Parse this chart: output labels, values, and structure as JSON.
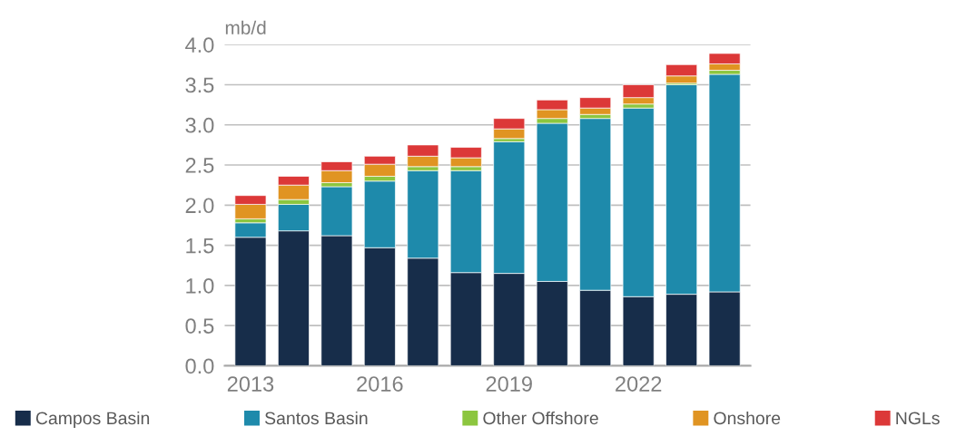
{
  "chart_data": {
    "type": "bar",
    "stacked": true,
    "ylabel": "mb/d",
    "categories": [
      "2013",
      null,
      null,
      "2016",
      null,
      null,
      "2019",
      null,
      null,
      "2022",
      null,
      null
    ],
    "series": [
      {
        "name": "Campos Basin",
        "color": "#172d4a",
        "values": [
          1.6,
          1.68,
          1.62,
          1.47,
          1.34,
          1.16,
          1.15,
          1.05,
          0.94,
          0.86,
          0.89,
          0.92
        ]
      },
      {
        "name": "Santos Basin",
        "color": "#1e8aab",
        "values": [
          0.18,
          0.33,
          0.61,
          0.83,
          1.09,
          1.27,
          1.64,
          1.97,
          2.14,
          2.35,
          2.61,
          2.71
        ]
      },
      {
        "name": "Other Offshore",
        "color": "#8cc63f",
        "values": [
          0.05,
          0.06,
          0.05,
          0.06,
          0.05,
          0.05,
          0.04,
          0.06,
          0.05,
          0.05,
          0.02,
          0.05
        ]
      },
      {
        "name": "Onshore",
        "color": "#e09422",
        "values": [
          0.18,
          0.18,
          0.15,
          0.15,
          0.13,
          0.11,
          0.12,
          0.11,
          0.08,
          0.08,
          0.09,
          0.08
        ]
      },
      {
        "name": "NGLs",
        "color": "#dc3838",
        "values": [
          0.11,
          0.11,
          0.11,
          0.1,
          0.14,
          0.13,
          0.13,
          0.12,
          0.13,
          0.16,
          0.14,
          0.13
        ]
      }
    ],
    "ylim": [
      0,
      4.0
    ],
    "yticks": [
      {
        "value": 0,
        "label": "0.0"
      },
      {
        "value": 0.5,
        "label": "0.5"
      },
      {
        "value": 1.0,
        "label": "1.0"
      },
      {
        "value": 1.5,
        "label": "1.5"
      },
      {
        "value": 2.0,
        "label": "2.0"
      },
      {
        "value": 2.5,
        "label": "2.5"
      },
      {
        "value": 3.0,
        "label": "3.0"
      },
      {
        "value": 3.5,
        "label": "3.5"
      },
      {
        "value": 4.0,
        "label": "4.0"
      }
    ],
    "grid": "y",
    "legend": "bottom"
  }
}
